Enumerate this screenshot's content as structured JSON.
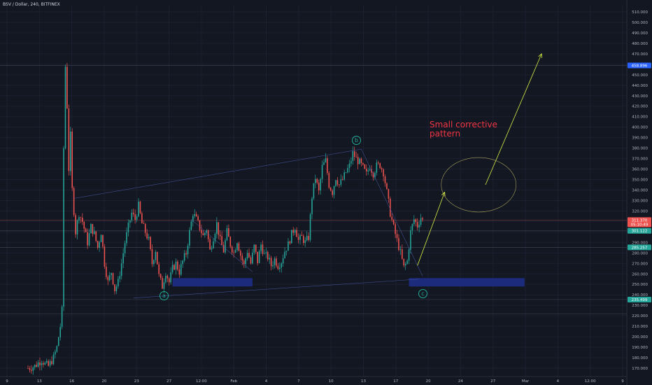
{
  "header": {
    "symbol_text": "BSV / Dollar, 240, BITFINEX"
  },
  "annotations": {
    "pattern_line1": "Small corrective",
    "pattern_line2": "pattern",
    "wave_a": "a",
    "wave_b": "b",
    "wave_c": "c"
  },
  "colors": {
    "background": "#131722",
    "up": "#26a69a",
    "down": "#ef5350",
    "grid": "#1c2030",
    "zone": "#1e2f8c",
    "annotation_text": "#f23645",
    "wave_circle": "#22ab94",
    "projection_arrow": "#d8ee45",
    "price_level_line": "#2a2e39",
    "trendline": "#4a5ba8"
  },
  "chart_data": {
    "type": "candlestick",
    "title": "BSV / Dollar, 240, BITFINEX",
    "ylim": [
      162,
      516
    ],
    "y_ticks": [
      170,
      180,
      190,
      200,
      210,
      220,
      230,
      240,
      250,
      260,
      270,
      280,
      290,
      300,
      310,
      320,
      330,
      340,
      350,
      360,
      370,
      380,
      390,
      400,
      410,
      420,
      430,
      440,
      450,
      460,
      470,
      480,
      490,
      500,
      510
    ],
    "y_tick_labels": [
      "170.000",
      "180.000",
      "190.000",
      "200.000",
      "210.000",
      "220.000",
      "230.000",
      "240.000",
      "250.000",
      "260.000",
      "270.000",
      "280.000",
      "290.000",
      "300.000",
      "310.000",
      "320.000",
      "330.000",
      "340.000",
      "350.000",
      "360.000",
      "370.000",
      "380.000",
      "390.000",
      "400.000",
      "410.000",
      "420.000",
      "430.000",
      "440.000",
      "450.000",
      "460.000",
      "470.000",
      "480.000",
      "490.000",
      "500.000",
      "510.000"
    ],
    "x_ticks": [
      "9",
      "13",
      "16",
      "20",
      "23",
      "27",
      "12:00",
      "Feb",
      "4",
      "7",
      "10",
      "13",
      "17",
      "20",
      "24",
      "27",
      "Mar",
      "4",
      "12:00",
      "9"
    ],
    "price_badges": [
      {
        "label": "458.896",
        "value": 458.9,
        "color": "#2962ff"
      },
      {
        "label": "311.370",
        "value": 311.4,
        "color": "#ef5350"
      },
      {
        "label": "05:10:49",
        "value": 307.3,
        "color": "#ef5350"
      },
      {
        "label": "301.122",
        "value": 301.1,
        "color": "#26a69a"
      },
      {
        "label": "285.257",
        "value": 285.3,
        "color": "#26a69a"
      },
      {
        "label": "235.499",
        "value": 235.5,
        "color": "#26a69a"
      }
    ],
    "price_path": [
      [
        0,
        170
      ],
      [
        4,
        172
      ],
      [
        8,
        178
      ],
      [
        10,
        174
      ],
      [
        12,
        172
      ],
      [
        15,
        180
      ],
      [
        17,
        190
      ],
      [
        19,
        210
      ],
      [
        20,
        225
      ],
      [
        21,
        380
      ],
      [
        22,
        458
      ],
      [
        23,
        420
      ],
      [
        24,
        360
      ],
      [
        25,
        392
      ],
      [
        26,
        340
      ],
      [
        28,
        300
      ],
      [
        30,
        318
      ],
      [
        32,
        310
      ],
      [
        35,
        290
      ],
      [
        37,
        305
      ],
      [
        39,
        298
      ],
      [
        41,
        285
      ],
      [
        43,
        300
      ],
      [
        45,
        270
      ],
      [
        47,
        252
      ],
      [
        49,
        262
      ],
      [
        51,
        245
      ],
      [
        53,
        252
      ],
      [
        55,
        270
      ],
      [
        57,
        290
      ],
      [
        59,
        305
      ],
      [
        61,
        318
      ],
      [
        63,
        312
      ],
      [
        65,
        325
      ],
      [
        67,
        308
      ],
      [
        69,
        300
      ],
      [
        71,
        292
      ],
      [
        73,
        270
      ],
      [
        75,
        283
      ],
      [
        77,
        258
      ],
      [
        79,
        248
      ],
      [
        81,
        262
      ],
      [
        83,
        252
      ],
      [
        85,
        265
      ],
      [
        87,
        270
      ],
      [
        89,
        262
      ],
      [
        91,
        272
      ],
      [
        93,
        280
      ],
      [
        95,
        300
      ],
      [
        97,
        318
      ],
      [
        99,
        312
      ],
      [
        101,
        304
      ],
      [
        103,
        296
      ],
      [
        105,
        303
      ],
      [
        107,
        282
      ],
      [
        109,
        295
      ],
      [
        111,
        308
      ],
      [
        113,
        292
      ],
      [
        115,
        282
      ],
      [
        117,
        300
      ],
      [
        119,
        288
      ],
      [
        121,
        280
      ],
      [
        123,
        292
      ],
      [
        125,
        278
      ],
      [
        127,
        268
      ],
      [
        129,
        282
      ],
      [
        131,
        270
      ],
      [
        133,
        286
      ],
      [
        135,
        272
      ],
      [
        137,
        288
      ],
      [
        139,
        278
      ],
      [
        141,
        276
      ],
      [
        143,
        268
      ],
      [
        145,
        274
      ],
      [
        147,
        268
      ],
      [
        149,
        272
      ],
      [
        151,
        282
      ],
      [
        153,
        288
      ],
      [
        155,
        298
      ],
      [
        157,
        305
      ],
      [
        159,
        292
      ],
      [
        161,
        295
      ],
      [
        163,
        290
      ],
      [
        165,
        295
      ],
      [
        167,
        334
      ],
      [
        169,
        352
      ],
      [
        171,
        338
      ],
      [
        173,
        362
      ],
      [
        175,
        368
      ],
      [
        177,
        345
      ],
      [
        179,
        338
      ],
      [
        181,
        352
      ],
      [
        183,
        345
      ],
      [
        185,
        350
      ],
      [
        187,
        357
      ],
      [
        189,
        363
      ],
      [
        191,
        375
      ],
      [
        193,
        370
      ],
      [
        195,
        366
      ],
      [
        197,
        361
      ],
      [
        199,
        355
      ],
      [
        201,
        363
      ],
      [
        203,
        356
      ],
      [
        205,
        363
      ],
      [
        207,
        364
      ],
      [
        209,
        357
      ],
      [
        211,
        338
      ],
      [
        213,
        318
      ],
      [
        215,
        304
      ],
      [
        217,
        292
      ],
      [
        219,
        280
      ],
      [
        221,
        266
      ],
      [
        223,
        272
      ],
      [
        225,
        300
      ],
      [
        227,
        312
      ],
      [
        229,
        306
      ],
      [
        231,
        314
      ],
      [
        232,
        311
      ]
    ],
    "candle_x_range": [
      0,
      232
    ],
    "candle_screen_span": [
      40,
      604
    ],
    "horizontal_levels": [
      458.9,
      311.4,
      301.1,
      285.3,
      235.5,
      222
    ],
    "zones": [
      {
        "x": [
          85,
          132
        ],
        "y": [
          248,
          256
        ]
      },
      {
        "x": [
          224,
          292
        ],
        "y": [
          248,
          256
        ]
      }
    ],
    "trendlines": [
      {
        "from": [
          27,
          332
        ],
        "to": [
          196,
          379
        ]
      },
      {
        "from": [
          62,
          237
        ],
        "to": [
          230,
          255
        ]
      },
      {
        "from": [
          196,
          379
        ],
        "to": [
          232,
          258
        ]
      },
      {
        "from": [
          96,
          312
        ],
        "to": [
          132,
          262
        ]
      }
    ],
    "projection_arrows": [
      {
        "from": [
          229,
          268
        ],
        "to": [
          245,
          338
        ]
      },
      {
        "from": [
          269,
          345
        ],
        "to": [
          302,
          470
        ]
      }
    ],
    "ellipse": {
      "center": [
        265,
        345
      ],
      "rx_units": 22,
      "ry_value": 26
    }
  }
}
